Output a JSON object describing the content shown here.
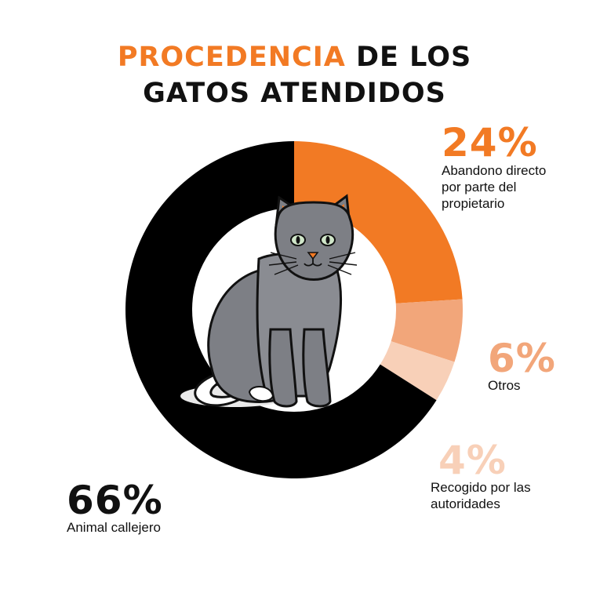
{
  "title": {
    "accent_text": "PROCEDENCIA",
    "line1_rest": " DE LOS",
    "line2": "GATOS ATENDIDOS"
  },
  "colors": {
    "accent": "#f27a24",
    "dark": "#111111",
    "cat_body": "#7d7f85"
  },
  "illustration": {
    "icon": "gray-cat-icon"
  },
  "chart_data": {
    "type": "pie",
    "donut": true,
    "title": "PROCEDENCIA DE LOS GATOS ATENDIDOS",
    "slices": [
      {
        "label": "Abandono directo por parte del propietario",
        "value": 24,
        "display": "24%",
        "desc_lines": [
          "Abandono directo",
          "por parte del",
          "propietario"
        ],
        "color": "#f27a24"
      },
      {
        "label": "Otros",
        "value": 6,
        "display": "6%",
        "desc_lines": [
          "Otros"
        ],
        "color": "#f2a67a"
      },
      {
        "label": "Recogido por las autoridades",
        "value": 4,
        "display": "4%",
        "desc_lines": [
          "Recogido por las",
          "autoridades"
        ],
        "color": "#f8d0b8"
      },
      {
        "label": "Animal callejero",
        "value": 66,
        "display": "66%",
        "desc_lines": [
          "Animal callejero"
        ],
        "color": "#000000"
      }
    ]
  }
}
